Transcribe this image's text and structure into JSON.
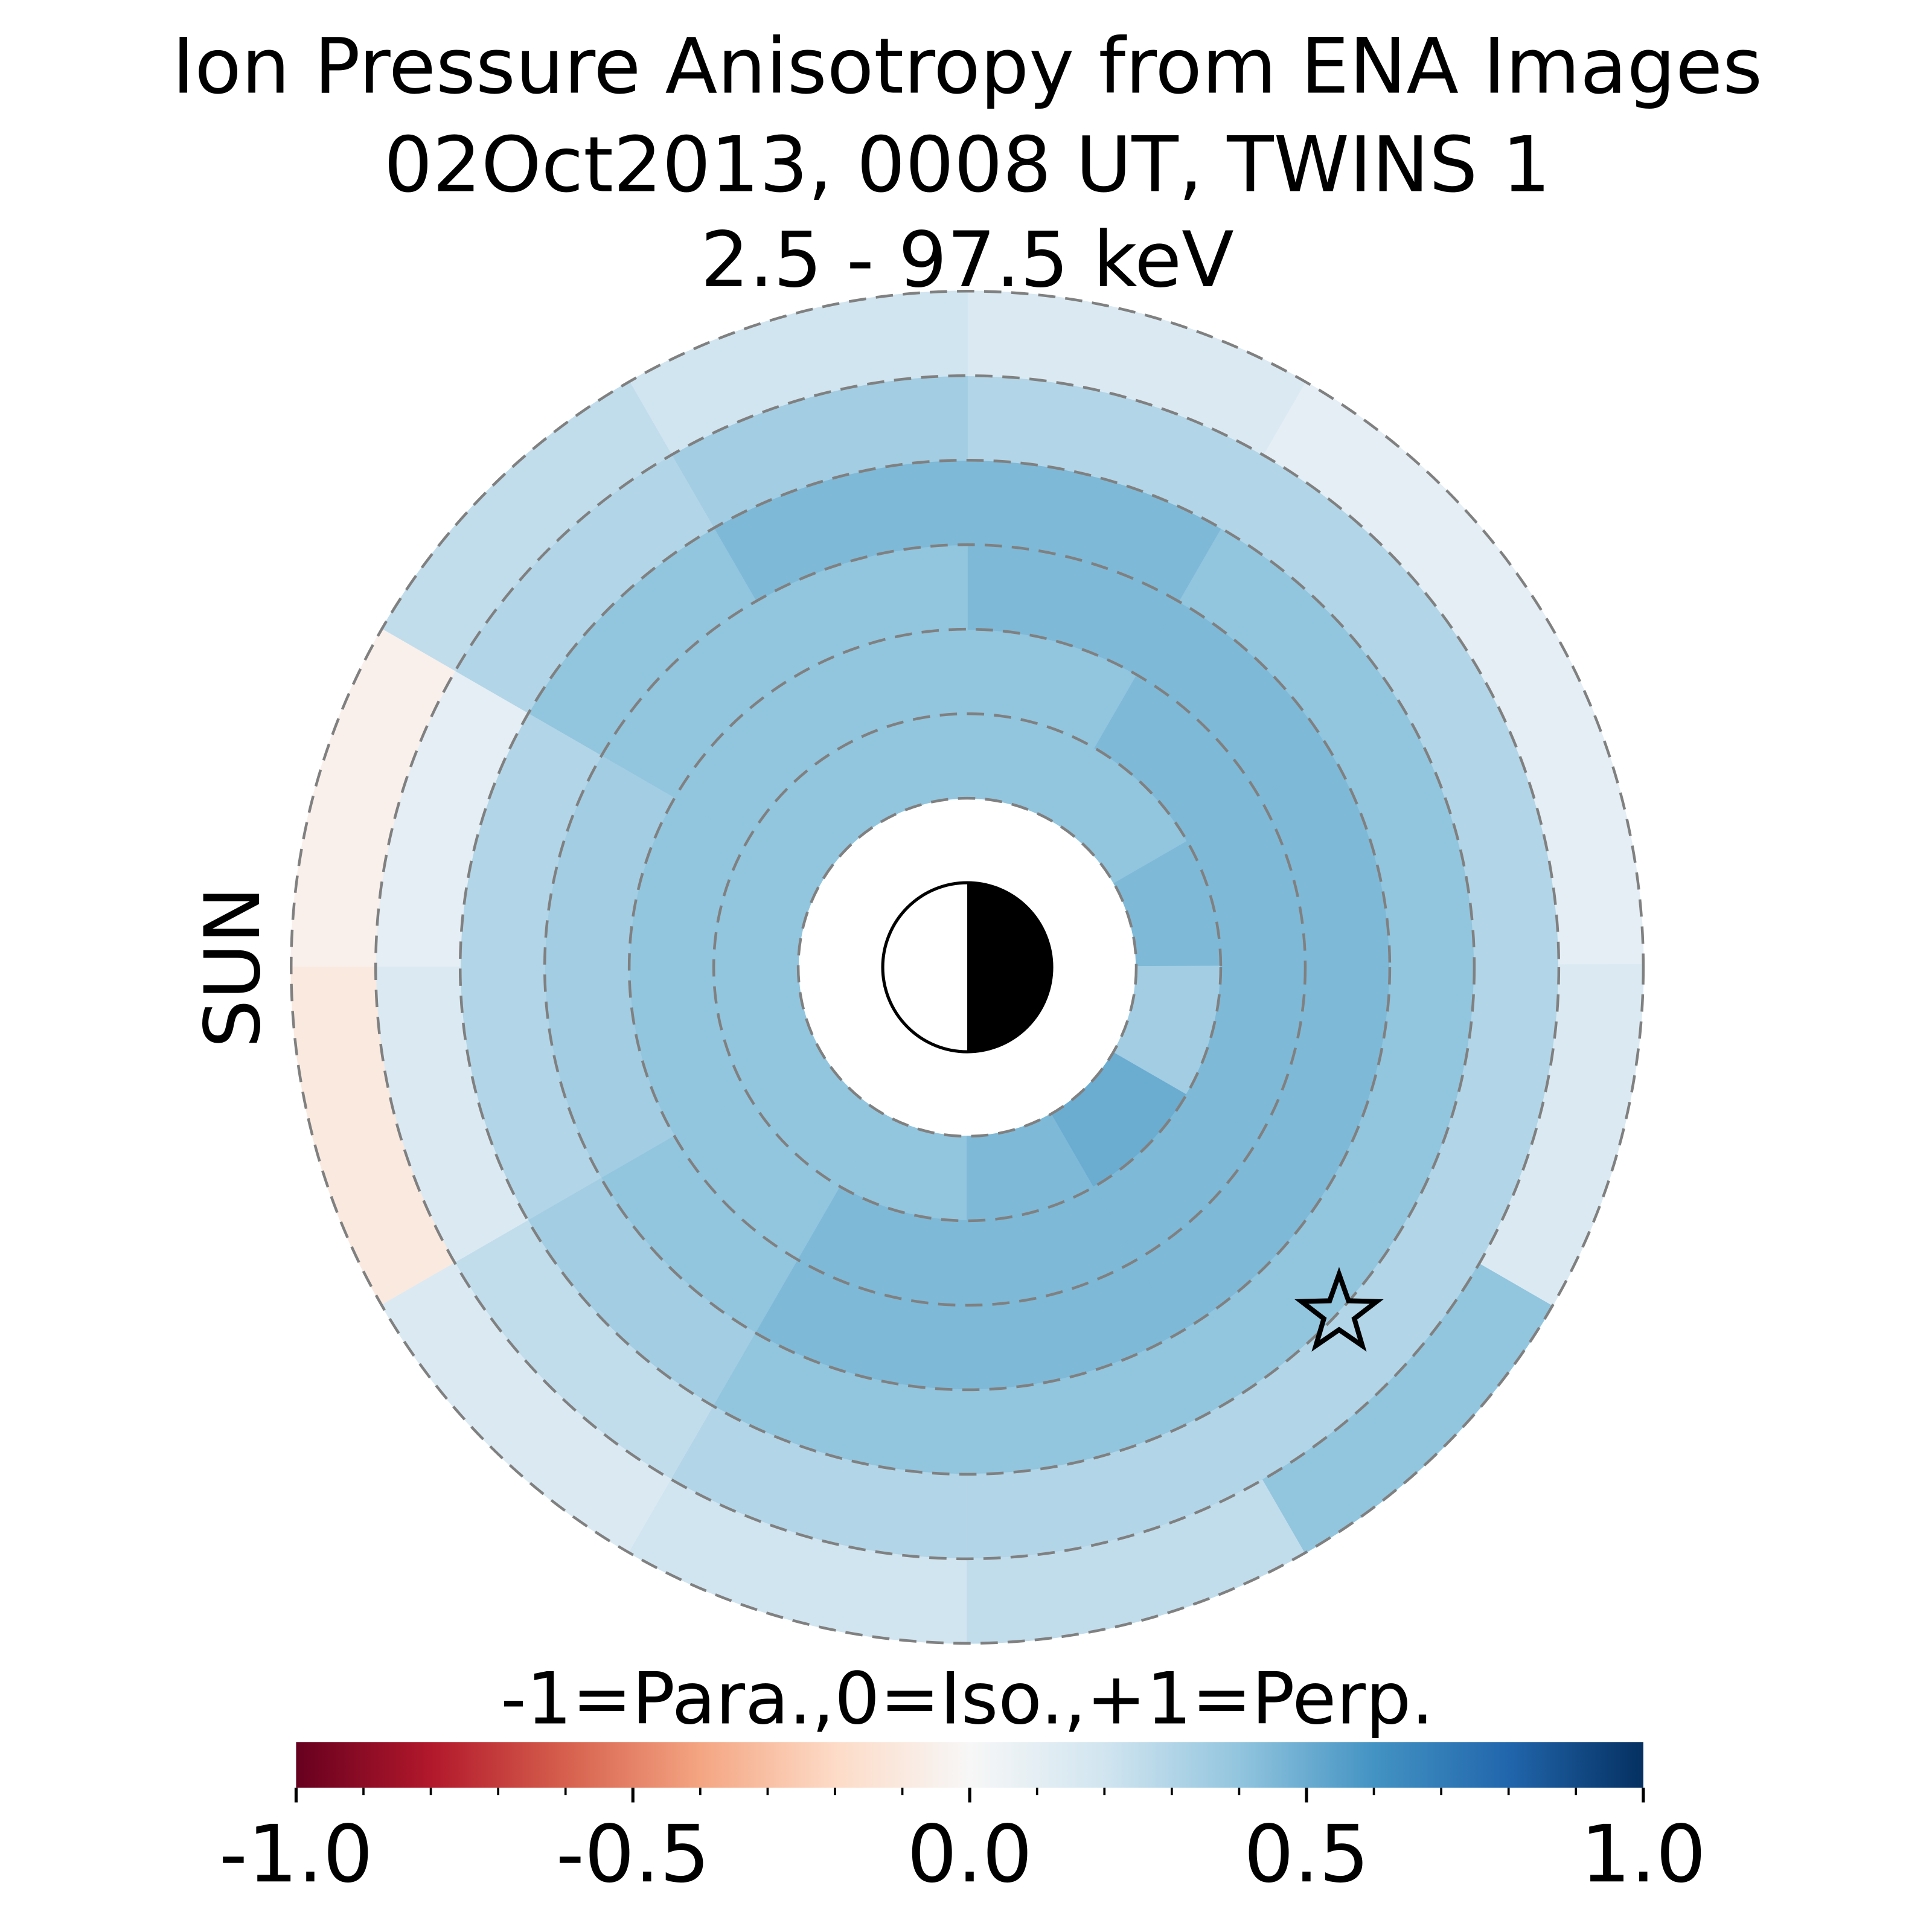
{
  "chart_data": {
    "type": "polar_heatmap",
    "title": [
      "Ion Pressure Anisotropy from  ENA Images",
      "02Oct2013, 0008 UT,  TWINS 1",
      "2.5 - 97.5 keV"
    ],
    "sun_label": "SUN",
    "sun_color": "#f5a300",
    "r_edges": [
      2,
      3,
      4,
      5,
      6,
      7,
      8
    ],
    "rlim": [
      2,
      8
    ],
    "rticks": [
      2,
      3,
      4,
      5,
      6,
      7,
      8
    ],
    "grid": true,
    "values": [
      [
        0.45,
        0.4,
        0.4,
        0.4,
        0.4,
        0.4,
        0.4,
        0.4,
        0.4,
        0.45,
        0.5,
        0.35
      ],
      [
        0.45,
        0.45,
        0.4,
        0.4,
        0.4,
        0.4,
        0.4,
        0.4,
        0.45,
        0.45,
        0.45,
        0.45
      ],
      [
        0.45,
        0.45,
        0.45,
        0.4,
        0.4,
        0.35,
        0.35,
        0.4,
        0.45,
        0.45,
        0.45,
        0.45
      ],
      [
        0.4,
        0.4,
        0.45,
        0.45,
        0.4,
        0.3,
        0.3,
        0.35,
        0.4,
        0.4,
        0.4,
        0.4
      ],
      [
        0.3,
        0.3,
        0.3,
        0.35,
        0.3,
        0.1,
        0.15,
        0.25,
        0.3,
        0.3,
        0.3,
        0.3
      ],
      [
        0.1,
        0.1,
        0.15,
        0.2,
        0.25,
        -0.05,
        -0.1,
        0.15,
        0.2,
        0.25,
        0.4,
        0.15
      ]
    ],
    "star": {
      "x": 4.4,
      "y": -4.1
    },
    "colorbar": {
      "label": "-1=Para.,0=Iso.,+1=Perp.",
      "lim": [
        -1,
        1
      ],
      "ticks": [
        {
          "value": -1,
          "label": "-1.0"
        },
        {
          "value": -0.5,
          "label": "-0.5"
        },
        {
          "value": 0,
          "label": "0.0"
        },
        {
          "value": 0.5,
          "label": "0.5"
        },
        {
          "value": 1,
          "label": "1.0"
        }
      ],
      "minor_ticks": [
        -0.9,
        -0.8,
        -0.7,
        -0.6,
        -0.4,
        -0.3,
        -0.2,
        -0.1,
        0.1,
        0.2,
        0.3,
        0.4,
        0.6,
        0.7,
        0.8,
        0.9
      ],
      "colormap": [
        "#67001f",
        "#b2182b",
        "#d6604d",
        "#f4a582",
        "#fddbc7",
        "#f7f7f7",
        "#d1e5f0",
        "#92c5de",
        "#4393c3",
        "#2166ac",
        "#053061"
      ]
    }
  }
}
